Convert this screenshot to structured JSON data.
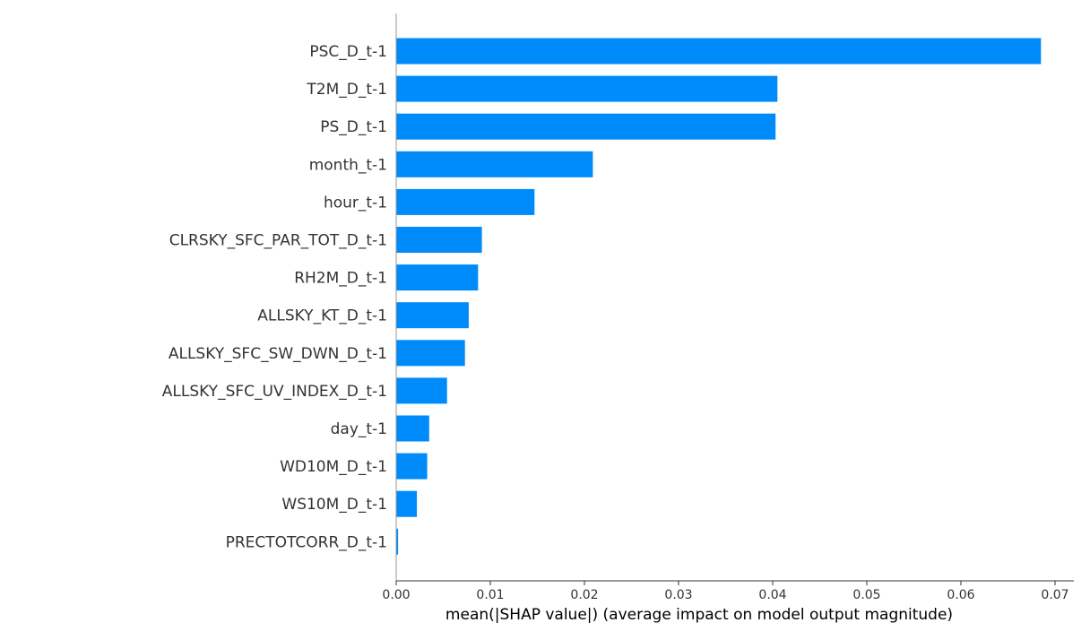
{
  "chart_data": {
    "type": "bar",
    "orientation": "horizontal",
    "categories": [
      "PSC_D_t-1",
      "T2M_D_t-1",
      "PS_D_t-1",
      "month_t-1",
      "hour_t-1",
      "CLRSKY_SFC_PAR_TOT_D_t-1",
      "RH2M_D_t-1",
      "ALLSKY_KT_D_t-1",
      "ALLSKY_SFC_SW_DWN_D_t-1",
      "ALLSKY_SFC_UV_INDEX_D_t-1",
      "day_t-1",
      "WD10M_D_t-1",
      "WS10M_D_t-1",
      "PRECTOTCORR_D_t-1"
    ],
    "values": [
      0.0685,
      0.0405,
      0.0403,
      0.0209,
      0.0147,
      0.0091,
      0.0087,
      0.0077,
      0.0073,
      0.0054,
      0.0035,
      0.0033,
      0.0022,
      0.0002
    ],
    "xticks": [
      0.0,
      0.01,
      0.02,
      0.03,
      0.04,
      0.05,
      0.06,
      0.07
    ],
    "xtick_labels": [
      "0.00",
      "0.01",
      "0.02",
      "0.03",
      "0.04",
      "0.05",
      "0.06",
      "0.07"
    ],
    "xlim": [
      0,
      0.072
    ],
    "xlabel": "mean(|SHAP value|) (average impact on model output magnitude)",
    "ylabel": "",
    "title": "",
    "bar_color": "#008bfb",
    "grid": false,
    "legend": "none"
  }
}
